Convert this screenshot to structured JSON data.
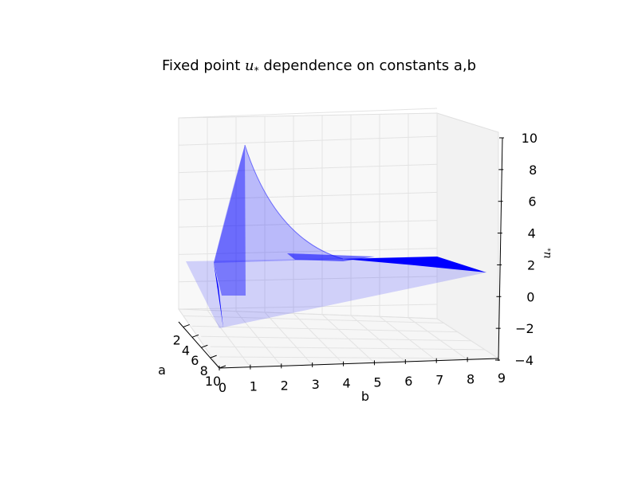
{
  "chart_data": {
    "type": "surface3d",
    "title": {
      "prefix": "Fixed point ",
      "symbol": "u",
      "symbol_sub": "*",
      "suffix": " dependence on constants a,b"
    },
    "xlabel": "b",
    "ylabel": "a",
    "zlabel": {
      "symbol": "u",
      "sub": "*"
    },
    "b_ticks": [
      "0",
      "1",
      "2",
      "3",
      "4",
      "5",
      "6",
      "7",
      "8",
      "9"
    ],
    "a_ticks": [
      "2",
      "4",
      "6",
      "8",
      "10"
    ],
    "z_ticks": [
      "10",
      "8",
      "6",
      "4",
      "2",
      "0",
      "−2",
      "−4"
    ],
    "xlim": [
      0,
      9
    ],
    "ylim": [
      1,
      10
    ],
    "zlim": [
      -4,
      10
    ],
    "grid": true,
    "surface_color": "#0000ff"
  }
}
